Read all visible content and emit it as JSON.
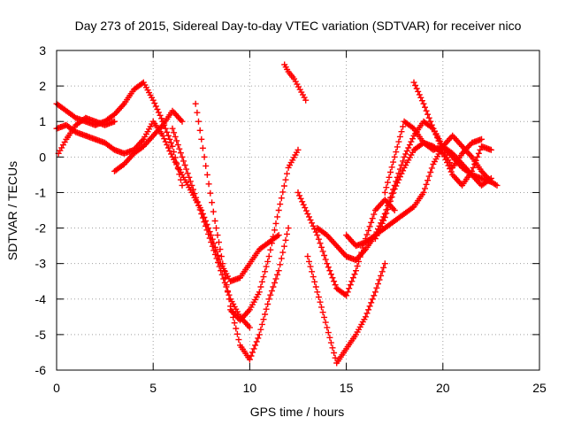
{
  "chart_data": {
    "type": "scatter",
    "title": "Day 273 of 2015, Sidereal Day-to-day VTEC variation (SDTVAR) for receiver nico",
    "xlabel": "GPS time / hours",
    "ylabel": "SDTVAR / TECUs",
    "xlim": [
      0,
      25
    ],
    "ylim": [
      -6,
      3
    ],
    "x_ticks": [
      "0",
      "5",
      "10",
      "15",
      "20",
      "25"
    ],
    "y_ticks": [
      "3",
      "2",
      "1",
      "0",
      "-1",
      "-2",
      "-3",
      "-4",
      "-5",
      "-6"
    ],
    "x_tick_values": [
      0,
      5,
      10,
      15,
      20,
      25
    ],
    "y_tick_values": [
      3,
      2,
      1,
      0,
      -1,
      -2,
      -3,
      -4,
      -5,
      -6
    ],
    "grid": true,
    "legend": "none",
    "marker": "+",
    "series_color": "#ff0000",
    "series": [
      {
        "x": [
          0.0,
          0.5,
          1.0,
          1.5,
          2.0,
          2.5,
          3.0,
          3.5,
          4.0,
          4.5,
          5.0,
          5.5,
          6.0,
          6.5,
          7.0,
          7.5,
          8.0,
          8.5,
          9.0,
          9.5,
          10.0,
          10.5,
          11.0,
          11.5
        ],
        "y": [
          0.8,
          0.9,
          0.7,
          0.6,
          0.5,
          0.4,
          0.2,
          0.1,
          0.2,
          0.5,
          1.0,
          0.6,
          0.0,
          -0.5,
          -1.0,
          -1.5,
          -2.2,
          -3.0,
          -3.5,
          -3.4,
          -3.0,
          -2.6,
          -2.4,
          -2.2
        ]
      },
      {
        "x": [
          0.0,
          0.5,
          1.0,
          1.5,
          2.0,
          2.5,
          3.0,
          3.5,
          4.0,
          4.5,
          5.0,
          5.5,
          6.0,
          6.5
        ],
        "y": [
          1.5,
          1.3,
          1.1,
          1.0,
          0.9,
          1.0,
          1.2,
          1.5,
          1.9,
          2.1,
          1.6,
          1.0,
          0.3,
          -0.8
        ]
      },
      {
        "x": [
          0.1,
          0.5,
          1.0,
          1.5,
          2.0,
          2.5,
          3.0
        ],
        "y": [
          0.1,
          0.5,
          0.9,
          1.1,
          1.0,
          0.9,
          1.0
        ]
      },
      {
        "x": [
          3.0,
          3.5,
          4.0,
          4.5,
          5.0,
          5.5,
          6.0,
          6.5
        ],
        "y": [
          -0.4,
          -0.2,
          0.1,
          0.3,
          0.6,
          0.9,
          1.3,
          1.0
        ]
      },
      {
        "x": [
          6.0,
          6.5,
          7.0,
          7.5,
          8.0,
          8.5,
          9.0,
          9.5,
          10.0
        ],
        "y": [
          0.8,
          0.0,
          -0.8,
          -1.6,
          -2.4,
          -3.2,
          -4.0,
          -4.5,
          -4.8
        ]
      },
      {
        "x": [
          7.2,
          7.5,
          7.8,
          8.2,
          8.6,
          9.0,
          9.5,
          10.0,
          10.5,
          11.0,
          11.5,
          12.0
        ],
        "y": [
          1.5,
          0.5,
          -0.5,
          -1.8,
          -3.0,
          -4.2,
          -5.3,
          -5.7,
          -5.0,
          -4.0,
          -3.2,
          -2.0
        ]
      },
      {
        "x": [
          9.0,
          9.5,
          10.0,
          10.5,
          11.0,
          11.5,
          12.0,
          12.5
        ],
        "y": [
          -4.3,
          -4.6,
          -4.3,
          -3.8,
          -2.8,
          -1.5,
          -0.3,
          0.2
        ]
      },
      {
        "x": [
          11.8,
          12.0,
          12.3,
          12.6,
          12.9
        ],
        "y": [
          2.6,
          2.4,
          2.2,
          1.9,
          1.6
        ]
      },
      {
        "x": [
          12.5,
          13.0,
          13.5,
          14.0,
          14.5,
          15.0,
          15.5,
          16.0,
          16.5,
          17.0,
          17.5
        ],
        "y": [
          -1.0,
          -1.6,
          -2.2,
          -3.0,
          -3.7,
          -3.9,
          -3.2,
          -2.3,
          -1.5,
          -1.2,
          -1.5
        ]
      },
      {
        "x": [
          13.0,
          13.5,
          14.0,
          14.5,
          15.0,
          15.5,
          16.0,
          16.5,
          17.0
        ],
        "y": [
          -2.8,
          -3.8,
          -4.8,
          -5.8,
          -5.4,
          -5.0,
          -4.5,
          -3.8,
          -3.0
        ]
      },
      {
        "x": [
          13.5,
          14.0,
          14.5,
          15.0,
          15.5,
          16.0,
          16.5,
          17.0,
          17.5,
          18.0,
          18.5,
          19.0,
          19.5,
          20.0,
          20.5,
          21.0,
          21.5,
          22.0,
          22.5
        ],
        "y": [
          -2.0,
          -2.2,
          -2.5,
          -2.8,
          -2.9,
          -2.6,
          -2.2,
          -1.6,
          -0.8,
          0.0,
          0.6,
          1.0,
          0.8,
          0.3,
          0.0,
          -0.3,
          -0.5,
          -0.6,
          -0.7
        ]
      },
      {
        "x": [
          15.0,
          15.5,
          16.0,
          16.5,
          17.0,
          17.5,
          18.0,
          18.5,
          19.0,
          19.5,
          20.0,
          20.5,
          21.0,
          21.5,
          22.0,
          22.5,
          22.8
        ],
        "y": [
          -2.2,
          -2.5,
          -2.4,
          -2.2,
          -2.0,
          -1.8,
          -1.6,
          -1.4,
          -1.0,
          -0.2,
          0.3,
          0.6,
          0.3,
          0.0,
          -0.4,
          -0.7,
          -0.8
        ]
      },
      {
        "x": [
          16.5,
          17.0,
          17.5,
          18.0,
          18.5,
          19.0,
          19.5,
          20.0,
          20.5,
          21.0,
          21.5,
          22.0,
          22.5
        ],
        "y": [
          -2.3,
          -1.7,
          -0.9,
          -0.3,
          0.2,
          0.4,
          0.3,
          0.1,
          -0.5,
          -0.8,
          -0.4,
          0.3,
          0.2
        ]
      },
      {
        "x": [
          17.0,
          17.5,
          18.0,
          18.5,
          19.0,
          19.5,
          20.0,
          20.5,
          21.0,
          21.5,
          22.0,
          22.5
        ],
        "y": [
          -1.0,
          0.0,
          1.0,
          0.8,
          0.4,
          0.2,
          0.3,
          0.1,
          -0.2,
          -0.5,
          -0.8,
          -0.6
        ]
      },
      {
        "x": [
          18.5,
          19.0,
          19.5,
          20.0,
          20.5,
          21.0,
          21.5,
          22.0
        ],
        "y": [
          2.1,
          1.5,
          0.8,
          0.2,
          -0.3,
          0.1,
          0.4,
          0.5
        ]
      }
    ]
  }
}
